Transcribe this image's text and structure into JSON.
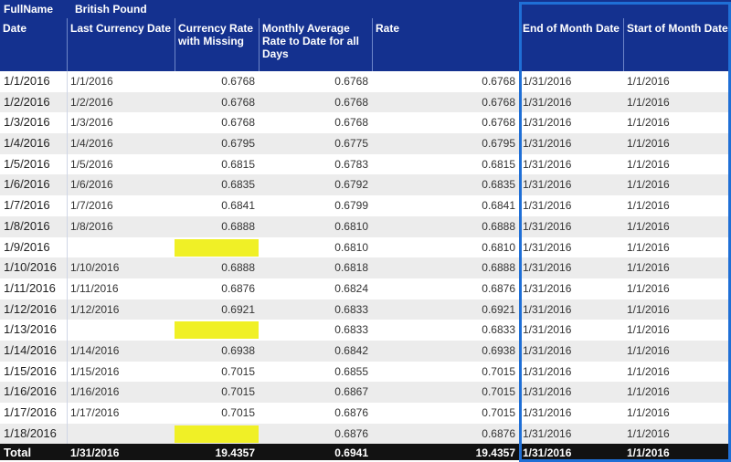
{
  "header_top": {
    "fullname_label": "FullName",
    "currency_label": "British Pound"
  },
  "columns": [
    "Date",
    "Last Currency Date",
    "Currency Rate with Missing",
    "Monthly Average Rate to Date for all Days",
    "Rate",
    "End of Month Date",
    "Start of Month Date"
  ],
  "rows": [
    {
      "date": "1/1/2016",
      "last": "1/1/2016",
      "missing": "0.6768",
      "avg": "0.6768",
      "rate": "0.6768",
      "eom": "1/31/2016",
      "som": "1/1/2016"
    },
    {
      "date": "1/2/2016",
      "last": "1/2/2016",
      "missing": "0.6768",
      "avg": "0.6768",
      "rate": "0.6768",
      "eom": "1/31/2016",
      "som": "1/1/2016"
    },
    {
      "date": "1/3/2016",
      "last": "1/3/2016",
      "missing": "0.6768",
      "avg": "0.6768",
      "rate": "0.6768",
      "eom": "1/31/2016",
      "som": "1/1/2016"
    },
    {
      "date": "1/4/2016",
      "last": "1/4/2016",
      "missing": "0.6795",
      "avg": "0.6775",
      "rate": "0.6795",
      "eom": "1/31/2016",
      "som": "1/1/2016"
    },
    {
      "date": "1/5/2016",
      "last": "1/5/2016",
      "missing": "0.6815",
      "avg": "0.6783",
      "rate": "0.6815",
      "eom": "1/31/2016",
      "som": "1/1/2016"
    },
    {
      "date": "1/6/2016",
      "last": "1/6/2016",
      "missing": "0.6835",
      "avg": "0.6792",
      "rate": "0.6835",
      "eom": "1/31/2016",
      "som": "1/1/2016"
    },
    {
      "date": "1/7/2016",
      "last": "1/7/2016",
      "missing": "0.6841",
      "avg": "0.6799",
      "rate": "0.6841",
      "eom": "1/31/2016",
      "som": "1/1/2016"
    },
    {
      "date": "1/8/2016",
      "last": "1/8/2016",
      "missing": "0.6888",
      "avg": "0.6810",
      "rate": "0.6888",
      "eom": "1/31/2016",
      "som": "1/1/2016"
    },
    {
      "date": "1/9/2016",
      "last": "",
      "missing": "",
      "avg": "0.6810",
      "rate": "0.6810",
      "eom": "1/31/2016",
      "som": "1/1/2016",
      "highlight": true
    },
    {
      "date": "1/10/2016",
      "last": "1/10/2016",
      "missing": "0.6888",
      "avg": "0.6818",
      "rate": "0.6888",
      "eom": "1/31/2016",
      "som": "1/1/2016"
    },
    {
      "date": "1/11/2016",
      "last": "1/11/2016",
      "missing": "0.6876",
      "avg": "0.6824",
      "rate": "0.6876",
      "eom": "1/31/2016",
      "som": "1/1/2016"
    },
    {
      "date": "1/12/2016",
      "last": "1/12/2016",
      "missing": "0.6921",
      "avg": "0.6833",
      "rate": "0.6921",
      "eom": "1/31/2016",
      "som": "1/1/2016"
    },
    {
      "date": "1/13/2016",
      "last": "",
      "missing": "",
      "avg": "0.6833",
      "rate": "0.6833",
      "eom": "1/31/2016",
      "som": "1/1/2016",
      "highlight": true
    },
    {
      "date": "1/14/2016",
      "last": "1/14/2016",
      "missing": "0.6938",
      "avg": "0.6842",
      "rate": "0.6938",
      "eom": "1/31/2016",
      "som": "1/1/2016"
    },
    {
      "date": "1/15/2016",
      "last": "1/15/2016",
      "missing": "0.7015",
      "avg": "0.6855",
      "rate": "0.7015",
      "eom": "1/31/2016",
      "som": "1/1/2016"
    },
    {
      "date": "1/16/2016",
      "last": "1/16/2016",
      "missing": "0.7015",
      "avg": "0.6867",
      "rate": "0.7015",
      "eom": "1/31/2016",
      "som": "1/1/2016"
    },
    {
      "date": "1/17/2016",
      "last": "1/17/2016",
      "missing": "0.7015",
      "avg": "0.6876",
      "rate": "0.7015",
      "eom": "1/31/2016",
      "som": "1/1/2016"
    },
    {
      "date": "1/18/2016",
      "last": "",
      "missing": "",
      "avg": "0.6876",
      "rate": "0.6876",
      "eom": "1/31/2016",
      "som": "1/1/2016",
      "highlight": true
    }
  ],
  "total": {
    "label": "Total",
    "last": "1/31/2016",
    "missing": "19.4357",
    "avg": "0.6941",
    "rate": "19.4357",
    "eom": "1/31/2016",
    "som": "1/1/2016"
  },
  "colors": {
    "header_bg": "#14318f",
    "highlight": "#f0f026",
    "selection_border": "#1f6fd6",
    "total_bg": "#121212",
    "row_alt": "#ececec"
  }
}
